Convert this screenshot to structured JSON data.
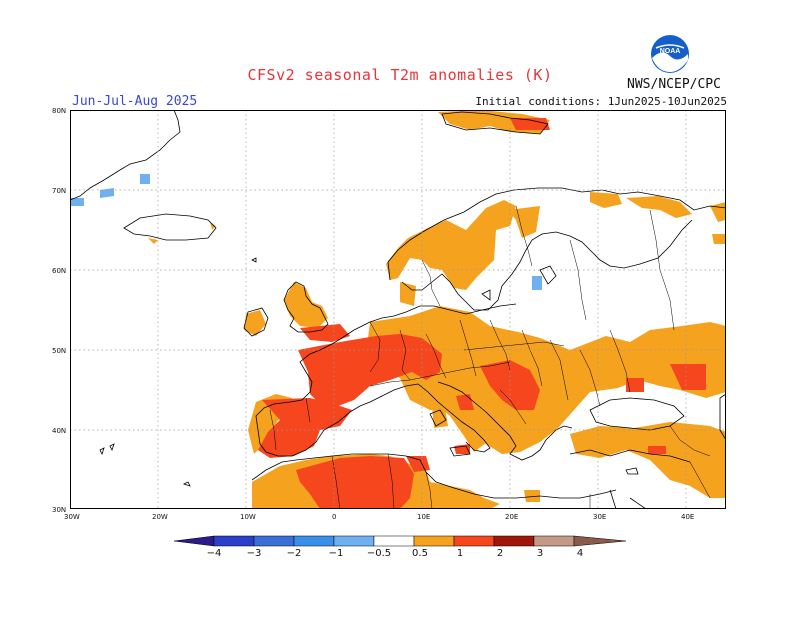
{
  "title": "CFSv2 seasonal T2m anomalies (K)",
  "season": "Jun-Jul-Aug 2025",
  "initial_conditions": "Initial conditions: 1Jun2025-10Jun2025",
  "agency": "NWS/NCEP/CPC",
  "logo_text": "NOAA",
  "lat_ticks": [
    "80N",
    "70N",
    "60N",
    "50N",
    "40N",
    "30N"
  ],
  "lon_ticks": [
    "30W",
    "20W",
    "10W",
    "0",
    "10E",
    "20E",
    "30E",
    "40E"
  ],
  "colorbar": {
    "labels": [
      "−4",
      "−3",
      "−2",
      "−1",
      "−0.5",
      "0.5",
      "1",
      "2",
      "3",
      "4"
    ],
    "colors": [
      "#2d1b8e",
      "#2c3fc8",
      "#3a7fe0",
      "#6fb0f0",
      "#a8d4f8",
      "#ffffff",
      "#f5a21e",
      "#f5461e",
      "#c41a0c",
      "#8b0a06",
      "#c49a86",
      "#8a5a4a"
    ]
  },
  "colors": {
    "orange": "#f5a21e",
    "red": "#f5461e",
    "lightblue": "#6fb0f0",
    "grid": "#9a9a9a",
    "coast": "#000000"
  }
}
